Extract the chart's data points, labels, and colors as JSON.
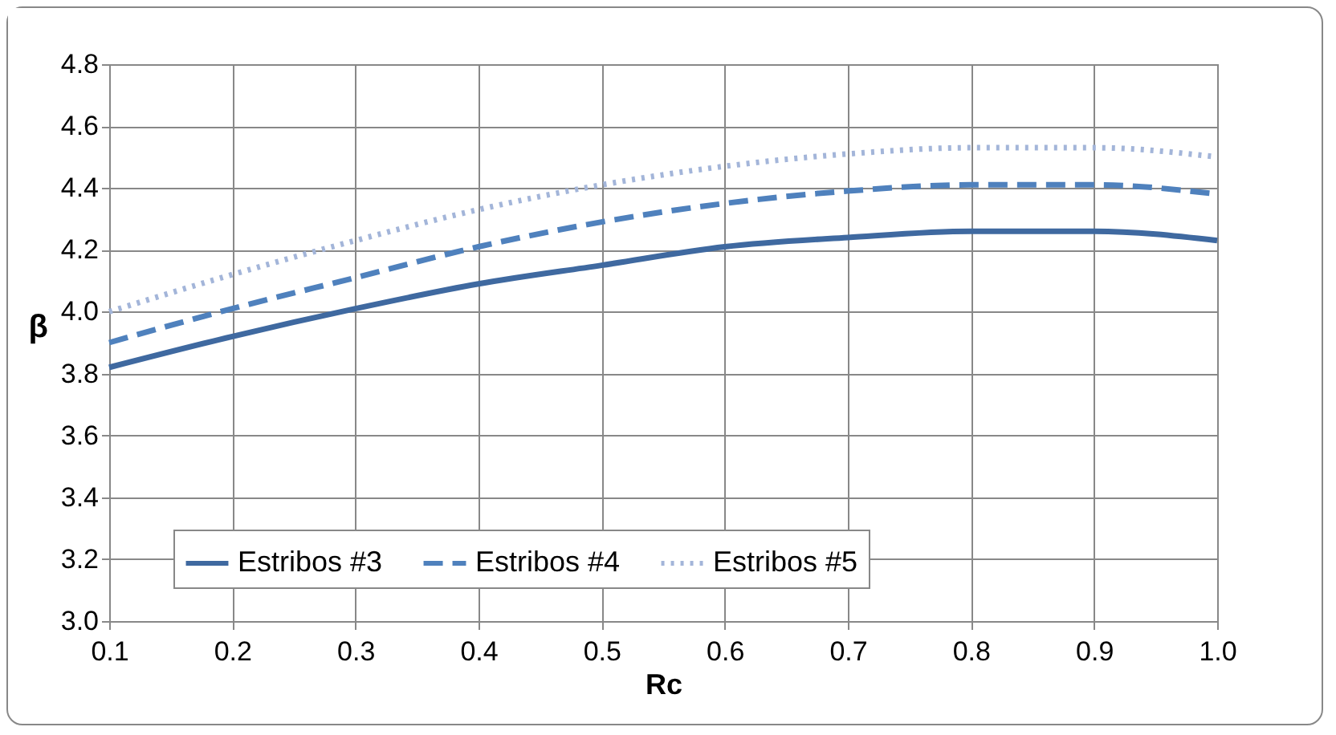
{
  "chart_data": {
    "type": "line",
    "xlabel": "Rc",
    "ylabel": "β",
    "x": [
      0.1,
      0.2,
      0.3,
      0.4,
      0.5,
      0.6,
      0.7,
      0.8,
      0.9,
      1.0
    ],
    "series": [
      {
        "name": "Estribos #3",
        "color": "#3f69a0",
        "line_style": "solid",
        "values": [
          3.82,
          3.92,
          4.01,
          4.09,
          4.15,
          4.21,
          4.24,
          4.26,
          4.26,
          4.23
        ]
      },
      {
        "name": "Estribos #4",
        "color": "#4f81bd",
        "line_style": "dashed",
        "values": [
          3.9,
          4.01,
          4.11,
          4.21,
          4.29,
          4.35,
          4.39,
          4.41,
          4.41,
          4.38
        ]
      },
      {
        "name": "Estribos #5",
        "color": "#a3b5d9",
        "line_style": "dotted",
        "values": [
          4.0,
          4.12,
          4.23,
          4.33,
          4.41,
          4.47,
          4.51,
          4.53,
          4.53,
          4.5
        ]
      }
    ],
    "xlim": [
      0.1,
      1.0
    ],
    "xticks": [
      0.1,
      0.2,
      0.3,
      0.4,
      0.5,
      0.6,
      0.7,
      0.8,
      0.9,
      {
        "value": 1,
        "label": "1.0"
      }
    ],
    "ylim": [
      3.0,
      4.8
    ],
    "yticks": [
      {
        "value": 3,
        "label": "3.0"
      },
      3.2,
      3.4,
      3.6,
      3.8,
      {
        "value": 4,
        "label": "4.0"
      },
      4.2,
      4.4,
      4.6,
      4.8
    ],
    "grid": true,
    "legend": "bottom",
    "marker": "none"
  }
}
